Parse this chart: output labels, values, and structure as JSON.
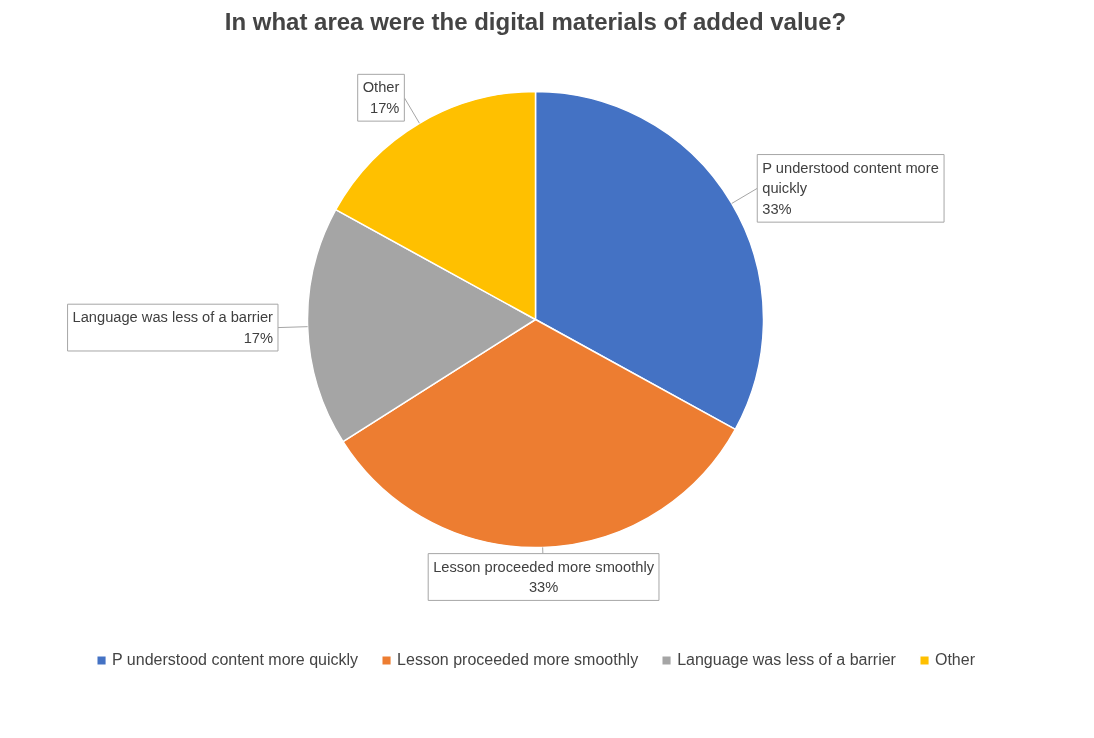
{
  "chart_data": {
    "type": "pie",
    "title": "In what area were the digital materials of added value?",
    "categories": [
      "P understood content more quickly",
      "Lesson proceeded more smoothly",
      "Language was less of a barrier",
      "Other"
    ],
    "values": [
      33,
      33,
      17,
      17
    ],
    "colors": [
      "#4472c4",
      "#ed7d31",
      "#a5a5a5",
      "#ffc000"
    ],
    "value_labels": [
      "33%",
      "33%",
      "17%",
      "17%"
    ],
    "legend": "bottom"
  }
}
